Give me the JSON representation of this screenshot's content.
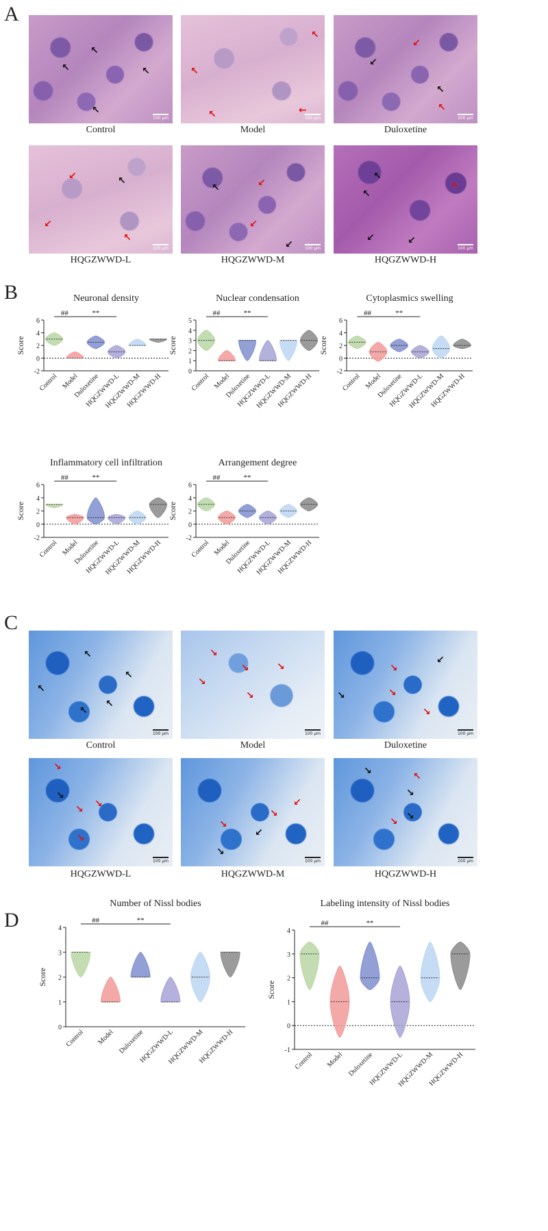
{
  "panels": {
    "a": "A",
    "b": "B",
    "c": "C",
    "d": "D"
  },
  "he_labels": [
    "Control",
    "Model",
    "Duloxetine",
    "HQGZWWD-L",
    "HQGZWWD-M",
    "HQGZWWD-H"
  ],
  "nissl_labels": [
    "Control",
    "Model",
    "Duloxetine",
    "HQGZWWD-L",
    "HQGZWWD-M",
    "HQGZWWD-H"
  ],
  "scale_bar_label": "100 μm",
  "colors": {
    "Control": "#b9d6a4",
    "Model": "#f29a9a",
    "Duloxetine": "#7f8fcf",
    "HQGZWWD-L": "#a7a3d6",
    "HQGZWWD-M": "#bcd6f2",
    "HQGZWWD-H": "#8a8a8a"
  },
  "chart_data": [
    {
      "type": "violin",
      "title": "Neuronal density",
      "ylabel": "Score",
      "ylim": [
        -2,
        6
      ],
      "yticks": [
        -2,
        0,
        2,
        4,
        6
      ],
      "categories": [
        "Control",
        "Model",
        "Duloxetine",
        "HQGZWWD-L",
        "HQGZWWD-M",
        "HQGZWWD-H"
      ],
      "medians": [
        3,
        0,
        2.5,
        1,
        2,
        3
      ],
      "mins": [
        2,
        0,
        1.5,
        0,
        2,
        2.5
      ],
      "maxs": [
        4,
        1,
        3.5,
        2,
        3,
        3
      ],
      "annotations": [
        {
          "text": "##",
          "from": 0,
          "to": 1
        },
        {
          "text": "**",
          "from": 1,
          "to": 3
        }
      ]
    },
    {
      "type": "violin",
      "title": "Nuclear condensation",
      "ylabel": "Score",
      "ylim": [
        0,
        5
      ],
      "yticks": [
        0,
        1,
        2,
        3,
        4,
        5
      ],
      "categories": [
        "Control",
        "Model",
        "Duloxetine",
        "HQGZWWD-L",
        "HQGZWWD-M",
        "HQGZWWD-H"
      ],
      "medians": [
        3,
        1,
        3,
        1,
        3,
        3
      ],
      "mins": [
        2,
        1,
        1,
        1,
        1,
        2
      ],
      "maxs": [
        4,
        2,
        3,
        3,
        3,
        4
      ],
      "annotations": [
        {
          "text": "##",
          "from": 0,
          "to": 1
        },
        {
          "text": "**",
          "from": 1,
          "to": 3
        }
      ]
    },
    {
      "type": "violin",
      "title": "Cytoplasmics swelling",
      "ylabel": "Score",
      "ylim": [
        -2,
        6
      ],
      "yticks": [
        -2,
        0,
        2,
        4,
        6
      ],
      "categories": [
        "Control",
        "Model",
        "Duloxetine",
        "HQGZWWD-L",
        "HQGZWWD-M",
        "HQGZWWD-H"
      ],
      "medians": [
        2.5,
        1,
        2,
        1,
        1.5,
        2
      ],
      "mins": [
        1.5,
        -0.5,
        1,
        0,
        0,
        1.5
      ],
      "maxs": [
        3.5,
        2.5,
        3,
        2,
        3.5,
        3
      ],
      "annotations": [
        {
          "text": "##",
          "from": 0,
          "to": 1
        },
        {
          "text": "**",
          "from": 1,
          "to": 3
        }
      ]
    },
    {
      "type": "violin",
      "title": "Inflammatory cell infiltration",
      "ylabel": "Score",
      "ylim": [
        -2,
        6
      ],
      "yticks": [
        -2,
        0,
        2,
        4,
        6
      ],
      "categories": [
        "Control",
        "Model",
        "Duloxetine",
        "HQGZWWD-L",
        "HQGZWWD-M",
        "HQGZWWD-H"
      ],
      "medians": [
        3,
        1,
        1,
        1,
        1,
        3
      ],
      "mins": [
        2.5,
        0,
        0,
        0,
        0,
        1
      ],
      "maxs": [
        3,
        1.5,
        4,
        1.5,
        2,
        4
      ],
      "annotations": [
        {
          "text": "##",
          "from": 0,
          "to": 1
        },
        {
          "text": "**",
          "from": 1,
          "to": 3
        }
      ]
    },
    {
      "type": "violin",
      "title": "Arrangement degree",
      "ylabel": "Score",
      "ylim": [
        -2,
        6
      ],
      "yticks": [
        -2,
        0,
        2,
        4,
        6
      ],
      "categories": [
        "Control",
        "Model",
        "Duloxetine",
        "HQGZWWD-L",
        "HQGZWWD-M",
        "HQGZWWD-H"
      ],
      "medians": [
        3,
        1,
        2,
        1,
        2,
        3
      ],
      "mins": [
        2,
        0,
        1,
        0,
        1,
        2
      ],
      "maxs": [
        4,
        2,
        3,
        2,
        3,
        4
      ],
      "annotations": [
        {
          "text": "##",
          "from": 0,
          "to": 1
        },
        {
          "text": "**",
          "from": 1,
          "to": 3
        }
      ]
    },
    {
      "type": "violin",
      "title": "Number of Nissl bodies",
      "ylabel": "Score",
      "ylim": [
        0,
        4
      ],
      "yticks": [
        0,
        1,
        2,
        3,
        4
      ],
      "categories": [
        "Control",
        "Model",
        "Duloxetine",
        "HQGZWWD-L",
        "HQGZWWD-M",
        "HQGZWWD-H"
      ],
      "medians": [
        3,
        1,
        2,
        1,
        2,
        3
      ],
      "mins": [
        2,
        1,
        2,
        1,
        1,
        2
      ],
      "maxs": [
        3,
        2,
        3,
        2,
        3,
        3
      ],
      "annotations": [
        {
          "text": "##",
          "from": 0,
          "to": 1
        },
        {
          "text": "**",
          "from": 1,
          "to": 3
        }
      ]
    },
    {
      "type": "violin",
      "title": "Labeling intensity of Nissl bodies",
      "ylabel": "Score",
      "ylim": [
        -1,
        4
      ],
      "yticks": [
        -1,
        0,
        1,
        2,
        3,
        4
      ],
      "categories": [
        "Control",
        "Model",
        "Duloxetine",
        "HQGZWWD-L",
        "HQGZWWD-M",
        "HQGZWWD-H"
      ],
      "medians": [
        3,
        1,
        2,
        1,
        2,
        3
      ],
      "mins": [
        1.5,
        -0.5,
        1.5,
        -0.5,
        1,
        1.5
      ],
      "maxs": [
        3.5,
        2.5,
        3.5,
        2.5,
        3.5,
        3.5
      ],
      "annotations": [
        {
          "text": "##",
          "from": 0,
          "to": 1
        },
        {
          "text": "**",
          "from": 1,
          "to": 3
        }
      ]
    }
  ]
}
